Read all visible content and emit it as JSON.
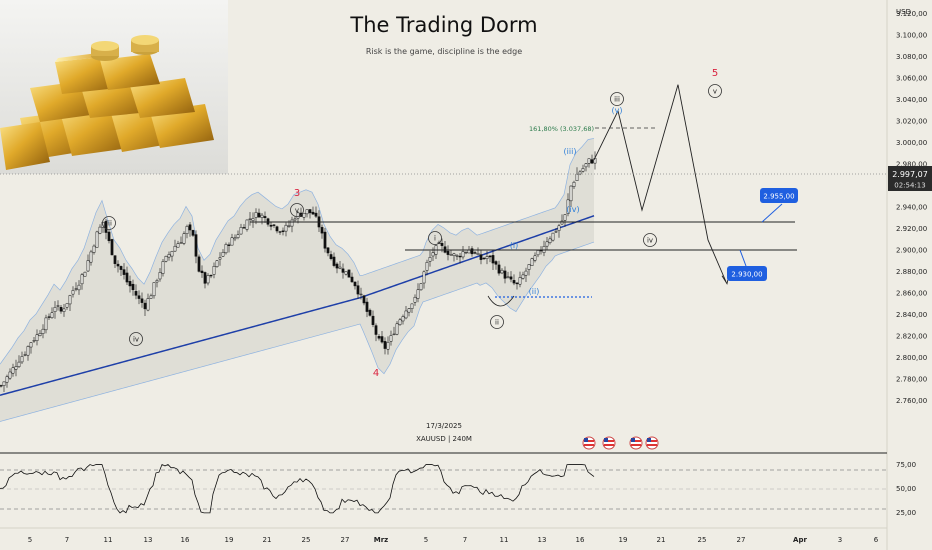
{
  "header": {
    "title": "The Trading Dorm",
    "subtitle": "Risk is the game, discipline is the edge"
  },
  "chart_data": [
    {
      "type": "candlestick",
      "symbol": "XAUUSD | 240M",
      "date_label": "17/3/2025",
      "currency": "USD",
      "ylim": [
        2750,
        3130
      ],
      "y_ticks": [
        "3.120,00",
        "3.100,00",
        "3.080,00",
        "3.060,00",
        "3.040,00",
        "3.020,00",
        "3.000,00",
        "2.980,00",
        "2.960,00",
        "2.940,00",
        "2.920,00",
        "2.900,00",
        "2.880,00",
        "2.860,00",
        "2.840,00",
        "2.820,00",
        "2.800,00",
        "2.780,00",
        "2.760,00"
      ],
      "x_ticks": [
        "5",
        "7",
        "11",
        "13",
        "16",
        "19",
        "21",
        "25",
        "27",
        "Mrz",
        "5",
        "7",
        "11",
        "13",
        "16",
        "19",
        "21",
        "25",
        "27",
        "Apr",
        "3",
        "6"
      ],
      "last_price": "2.997,07",
      "countdown": "02:54:13",
      "levels": [
        {
          "label": "2.955,00",
          "value": 2955,
          "color": "#1f5fe0"
        },
        {
          "label": "2.930,00",
          "value": 2930,
          "color": "#1f5fe0"
        }
      ],
      "fib_label": "161,80% (3.037,68)",
      "fib_value": 3037.68,
      "wave_labels": {
        "red": [
          "3",
          "4",
          "5"
        ],
        "black_circled": [
          "iii",
          "iv",
          "v",
          "i",
          "ii",
          "iii",
          "iv",
          "v"
        ],
        "blue": [
          "(i)",
          "(ii)",
          "(iii)",
          "(iv)",
          "(v)"
        ]
      },
      "close_path": [
        [
          0,
          2808
        ],
        [
          2,
          2815
        ],
        [
          4,
          2822
        ],
        [
          6,
          2830
        ],
        [
          8,
          2836
        ],
        [
          10,
          2845
        ],
        [
          12,
          2850
        ],
        [
          14,
          2858
        ],
        [
          16,
          2866
        ],
        [
          18,
          2875
        ],
        [
          20,
          2870
        ],
        [
          22,
          2878
        ],
        [
          24,
          2888
        ],
        [
          26,
          2895
        ],
        [
          28,
          2905
        ],
        [
          30,
          2920
        ],
        [
          32,
          2935
        ],
        [
          34,
          2945
        ],
        [
          36,
          2928
        ],
        [
          38,
          2912
        ],
        [
          40,
          2905
        ],
        [
          42,
          2895
        ],
        [
          44,
          2888
        ],
        [
          46,
          2880
        ],
        [
          48,
          2875
        ],
        [
          50,
          2885
        ],
        [
          52,
          2898
        ],
        [
          54,
          2910
        ],
        [
          56,
          2918
        ],
        [
          58,
          2925
        ],
        [
          60,
          2930
        ],
        [
          62,
          2940
        ],
        [
          64,
          2932
        ],
        [
          66,
          2905
        ],
        [
          68,
          2895
        ],
        [
          70,
          2900
        ],
        [
          72,
          2912
        ],
        [
          74,
          2920
        ],
        [
          76,
          2928
        ],
        [
          78,
          2932
        ],
        [
          80,
          2940
        ],
        [
          82,
          2946
        ],
        [
          84,
          2950
        ],
        [
          86,
          2952
        ],
        [
          88,
          2948
        ],
        [
          90,
          2944
        ],
        [
          92,
          2940
        ],
        [
          94,
          2938
        ],
        [
          96,
          2942
        ],
        [
          98,
          2950
        ],
        [
          100,
          2952
        ],
        [
          102,
          2954
        ],
        [
          104,
          2952
        ],
        [
          106,
          2942
        ],
        [
          108,
          2925
        ],
        [
          110,
          2915
        ],
        [
          112,
          2908
        ],
        [
          114,
          2905
        ],
        [
          116,
          2900
        ],
        [
          118,
          2893
        ],
        [
          120,
          2882
        ],
        [
          122,
          2870
        ],
        [
          124,
          2858
        ],
        [
          126,
          2845
        ],
        [
          128,
          2840
        ],
        [
          130,
          2848
        ],
        [
          132,
          2860
        ],
        [
          134,
          2868
        ],
        [
          136,
          2875
        ],
        [
          138,
          2880
        ],
        [
          140,
          2895
        ],
        [
          142,
          2910
        ],
        [
          144,
          2920
        ],
        [
          146,
          2925
        ],
        [
          148,
          2922
        ],
        [
          150,
          2918
        ],
        [
          152,
          2916
        ],
        [
          154,
          2920
        ],
        [
          156,
          2922
        ],
        [
          158,
          2918
        ],
        [
          160,
          2914
        ],
        [
          162,
          2916
        ],
        [
          164,
          2912
        ],
        [
          166,
          2905
        ],
        [
          168,
          2900
        ],
        [
          170,
          2895
        ],
        [
          172,
          2892
        ],
        [
          174,
          2900
        ],
        [
          176,
          2908
        ],
        [
          178,
          2915
        ],
        [
          180,
          2922
        ],
        [
          182,
          2930
        ],
        [
          184,
          2935
        ],
        [
          186,
          2942
        ],
        [
          188,
          2950
        ],
        [
          190,
          2975
        ],
        [
          192,
          2985
        ],
        [
          194,
          2990
        ],
        [
          196,
          2996
        ],
        [
          198,
          2997
        ]
      ],
      "projection": [
        [
          198,
          2997
        ],
        [
          206,
          3038
        ],
        [
          214,
          2955
        ],
        [
          226,
          3060
        ],
        [
          236,
          2930
        ],
        [
          242,
          2895
        ]
      ],
      "rsi": {
        "y_ticks": [
          "75,00",
          "50,00",
          "25,00"
        ],
        "ylim": [
          15,
          85
        ]
      }
    }
  ]
}
